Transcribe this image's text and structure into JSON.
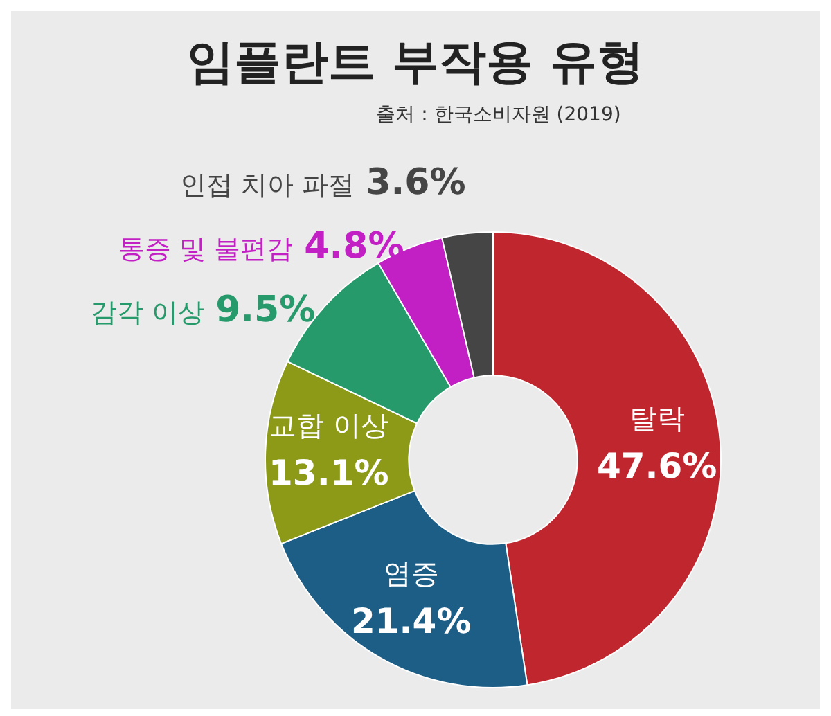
{
  "chart_data": {
    "type": "donut",
    "title": "임플란트 부작용 유형",
    "subtitle": "출처 : 한국소비자원 (2019)",
    "categories": [
      "탈락",
      "염증",
      "교합 이상",
      "감각 이상",
      "통증 및 불편감",
      "인접 치아 파절"
    ],
    "values": [
      47.6,
      21.4,
      13.1,
      9.5,
      4.8,
      3.6
    ],
    "value_labels": [
      "47.6%",
      "21.4%",
      "13.1%",
      "9.5%",
      "4.8%",
      "3.6%"
    ],
    "colors": [
      "#c0262e",
      "#1d5e86",
      "#8c9a18",
      "#279a6c",
      "#c21fc4",
      "#454545"
    ],
    "legend": false
  }
}
